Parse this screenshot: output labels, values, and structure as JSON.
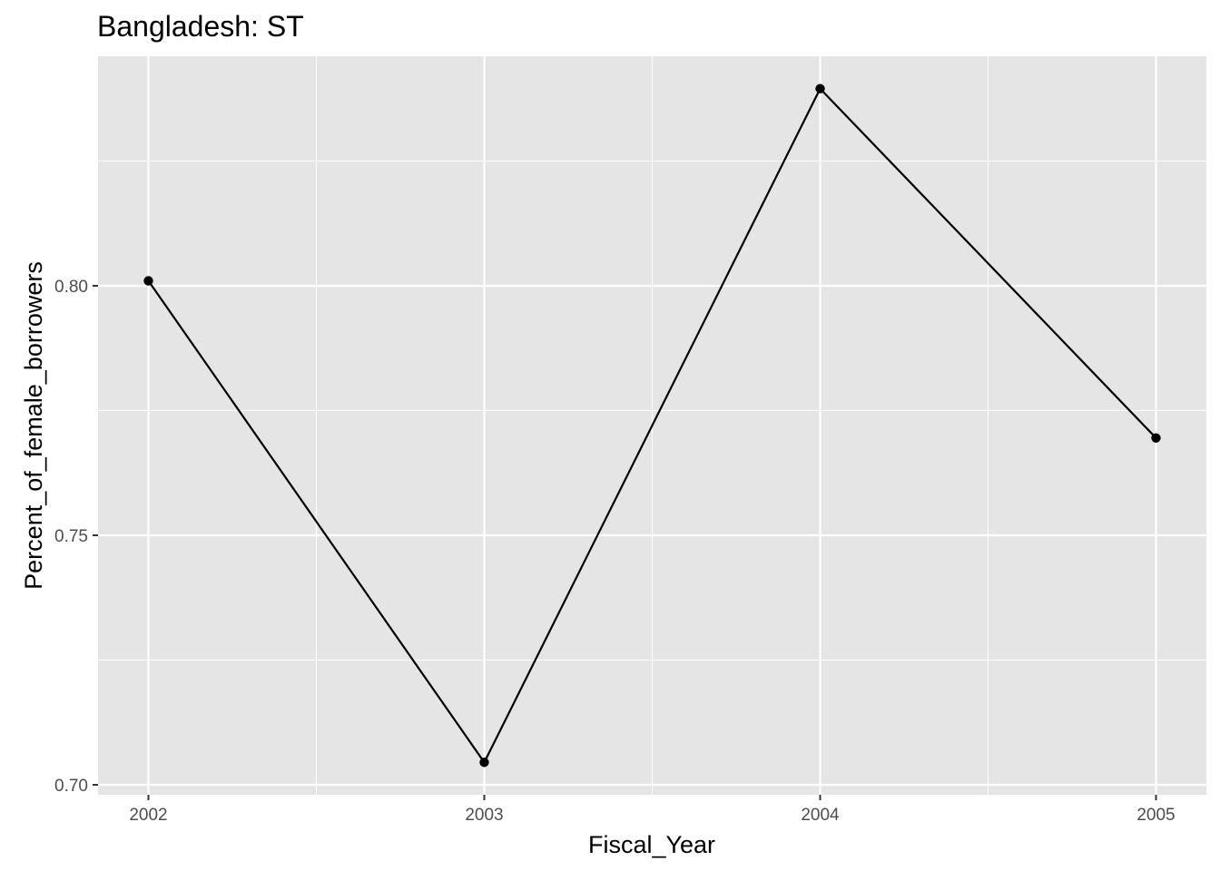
{
  "chart_data": {
    "type": "line",
    "title": "Bangladesh:  ST",
    "xlabel": "Fiscal_Year",
    "ylabel": "Percent_of_female_borrowers",
    "x": [
      2002,
      2003,
      2004,
      2005
    ],
    "x_ticks": [
      "2002",
      "2003",
      "2004",
      "2005"
    ],
    "y": [
      0.801,
      0.7045,
      0.8395,
      0.7695
    ],
    "y_ticks": [
      "0.70",
      "0.75",
      "0.80"
    ],
    "y_tick_values": [
      0.7,
      0.75,
      0.8
    ],
    "y_minor_values": [
      0.725,
      0.775,
      0.825
    ],
    "xlim": [
      2001.85,
      2005.15
    ],
    "ylim": [
      0.698,
      0.846
    ],
    "grid": true,
    "colors": {
      "panel_background": "#e5e5e5",
      "grid": "#ffffff",
      "line": "#000000",
      "point": "#000000",
      "tick_text": "#4d4d4d",
      "tick_mark": "#333333"
    }
  }
}
